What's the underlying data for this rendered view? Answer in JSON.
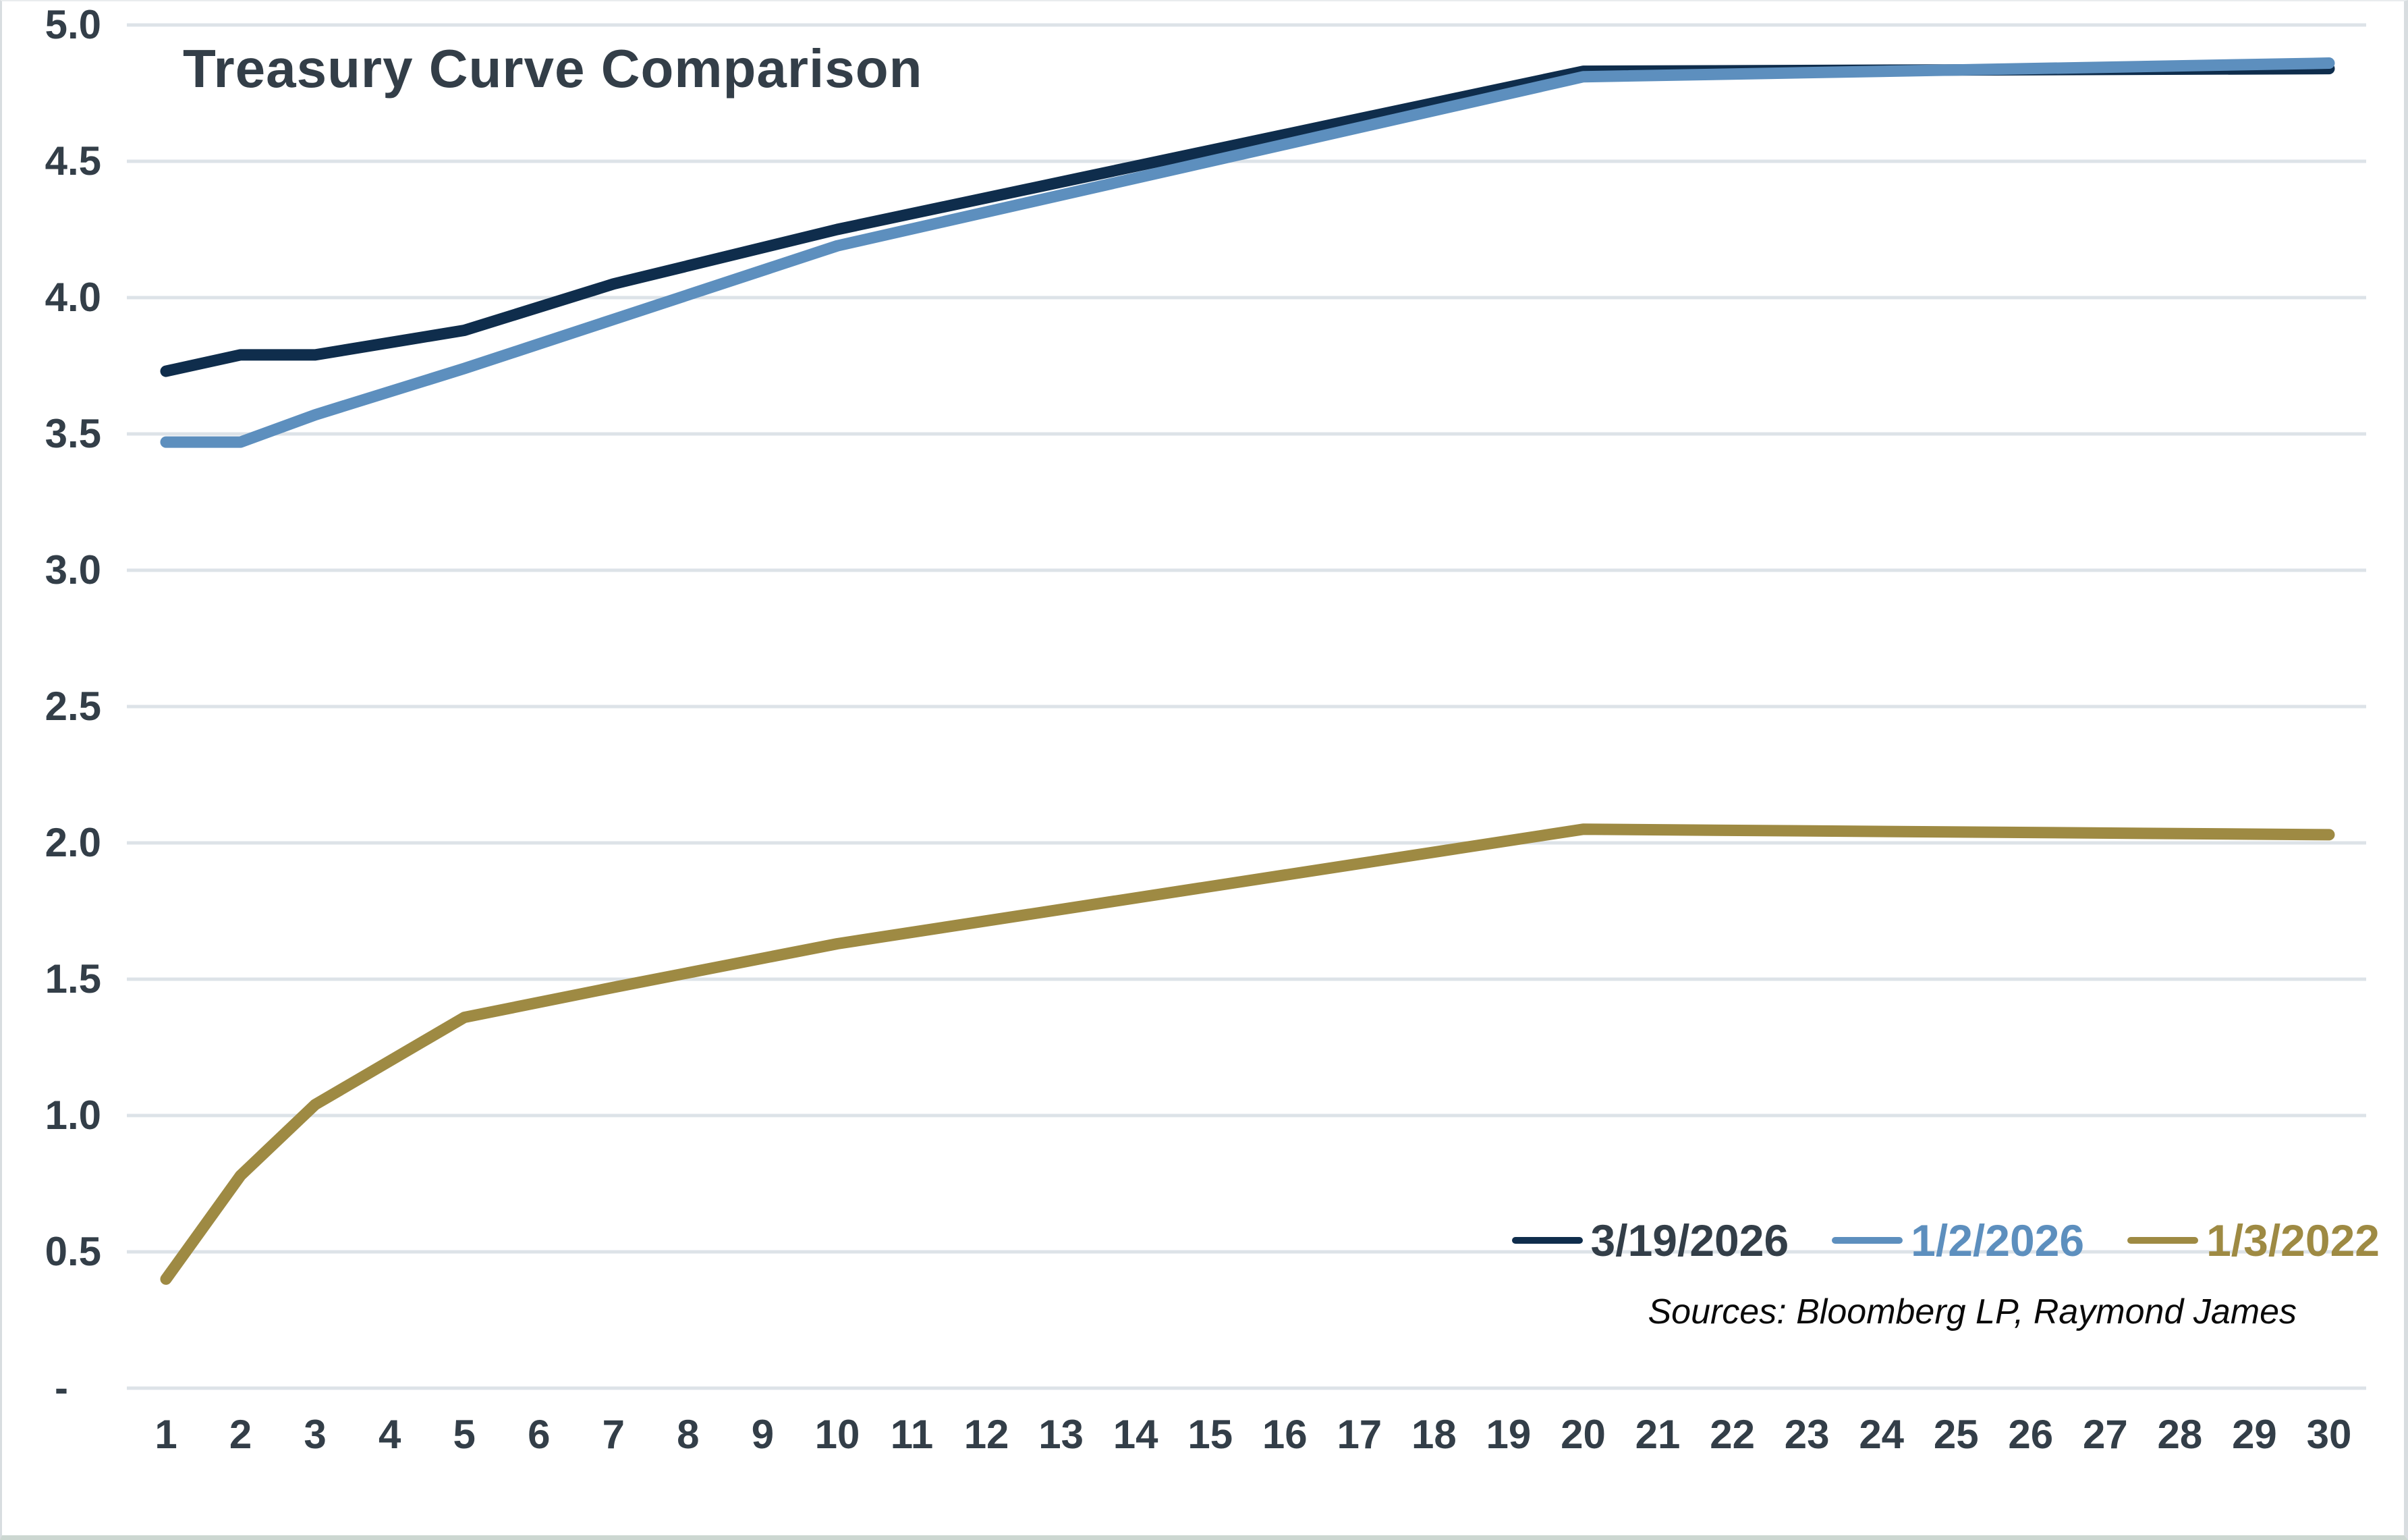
{
  "title": "Treasury Curve Comparison",
  "source_note": "Sources: Bloomberg LP, Raymond James",
  "colors": {
    "text": "#333e48",
    "gridline": "#dde3e8",
    "navy": "#0f2d4c",
    "blue": "#5d8fbe",
    "olive": "#9e8a43"
  },
  "chart_data": {
    "type": "line",
    "title": "Treasury Curve Comparison",
    "xlabel": "",
    "ylabel": "",
    "xlim": [
      1,
      30
    ],
    "ylim": [
      0,
      5
    ],
    "grid": "horizontal",
    "legend_position": "bottom-right-inside",
    "x": [
      1,
      2,
      3,
      5,
      7,
      10,
      20,
      30
    ],
    "series": [
      {
        "name": "3/19/2026",
        "color": "#0f2d4c",
        "label_color": "#333e48",
        "values": [
          3.73,
          3.79,
          3.79,
          3.88,
          4.05,
          4.25,
          4.83,
          4.84
        ]
      },
      {
        "name": "1/2/2026",
        "color": "#5d8fbe",
        "label_color": "#5d8fbe",
        "values": [
          3.47,
          3.47,
          3.57,
          3.74,
          3.92,
          4.19,
          4.81,
          4.86
        ]
      },
      {
        "name": "1/3/2022",
        "color": "#9e8a43",
        "label_color": "#9e8a43",
        "values": [
          0.4,
          0.78,
          1.04,
          1.36,
          1.47,
          1.63,
          2.05,
          2.03
        ]
      }
    ],
    "x_ticks": [
      "1",
      "2",
      "3",
      "4",
      "5",
      "6",
      "7",
      "8",
      "9",
      "10",
      "11",
      "12",
      "13",
      "14",
      "15",
      "16",
      "17",
      "18",
      "19",
      "20",
      "21",
      "22",
      "23",
      "24",
      "25",
      "26",
      "27",
      "28",
      "29",
      "30"
    ],
    "y_ticks": [
      {
        "label": "5.0",
        "value": 5
      },
      {
        "label": "4.5",
        "value": 4.5
      },
      {
        "label": "4.0",
        "value": 4
      },
      {
        "label": "3.5",
        "value": 3.5
      },
      {
        "label": "3.0",
        "value": 3
      },
      {
        "label": "2.5",
        "value": 2.5
      },
      {
        "label": "2.0",
        "value": 2
      },
      {
        "label": "1.5",
        "value": 1.5
      },
      {
        "label": "1.0",
        "value": 1
      },
      {
        "label": "0.5",
        "value": 0.5
      },
      {
        "label": "-",
        "value": 0
      }
    ]
  }
}
